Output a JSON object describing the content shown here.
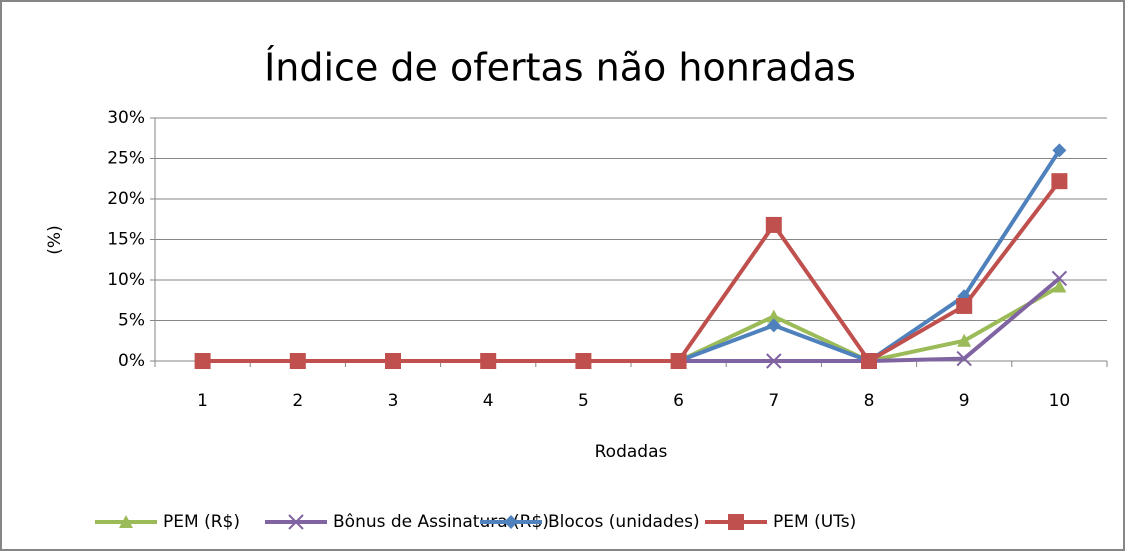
{
  "chart_data": {
    "type": "line",
    "title": "Índice de ofertas não honradas",
    "x_label": "Rodadas",
    "y_label": "(%)",
    "categories": [
      "1",
      "2",
      "3",
      "4",
      "5",
      "6",
      "7",
      "8",
      "9",
      "10"
    ],
    "series": [
      {
        "name": "PEM (R$)",
        "color": "#9bbb59",
        "marker": "triangle",
        "values": [
          0,
          0,
          0,
          0,
          0,
          0,
          5.5,
          0,
          2.5,
          9.2
        ]
      },
      {
        "name": "Bônus de Assinatura (R$)",
        "color": "#8064a2",
        "marker": "x",
        "values": [
          0,
          0,
          0,
          0,
          0,
          0,
          0,
          0,
          0.3,
          10.2
        ]
      },
      {
        "name": "Blocos (unidades)",
        "color": "#4f81bd",
        "marker": "diamond",
        "values": [
          0,
          0,
          0,
          0,
          0,
          0,
          4.4,
          0,
          8,
          26
        ]
      },
      {
        "name": "PEM (UTs)",
        "color": "#c0504d",
        "marker": "square",
        "values": [
          0,
          0,
          0,
          0,
          0,
          0,
          16.8,
          0,
          6.8,
          22.2
        ]
      }
    ],
    "ylim": [
      0,
      30
    ],
    "yticks": [
      {
        "value": 0,
        "label": "0%"
      },
      {
        "value": 5,
        "label": "5%"
      },
      {
        "value": 10,
        "label": "10%"
      },
      {
        "value": 15,
        "label": "15%"
      },
      {
        "value": 20,
        "label": "20%"
      },
      {
        "value": 25,
        "label": "25%"
      },
      {
        "value": 30,
        "label": "30%"
      }
    ],
    "grid": true,
    "legend": "bottom"
  }
}
